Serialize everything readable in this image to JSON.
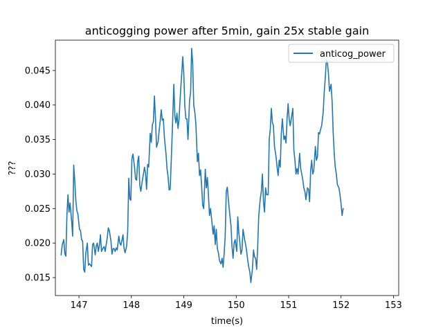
{
  "chart_data": {
    "type": "line",
    "title": "anticogging power after 5min, gain 25x stable gain",
    "xlabel": "time(s)",
    "ylabel": "???",
    "xlim": [
      146.55,
      153.1
    ],
    "ylim": [
      0.0124,
      0.0494
    ],
    "x_ticks": [
      147,
      148,
      149,
      150,
      151,
      152,
      153
    ],
    "y_ticks": [
      0.015,
      0.02,
      0.025,
      0.03,
      0.035,
      0.04,
      0.045
    ],
    "x_tick_labels": [
      "147",
      "148",
      "149",
      "150",
      "151",
      "152",
      "153"
    ],
    "y_tick_labels": [
      "0.015",
      "0.020",
      "0.025",
      "0.030",
      "0.035",
      "0.040",
      "0.045"
    ],
    "grid": false,
    "legend_position": "top-right",
    "colors": {
      "series": "#1f77b4"
    },
    "series": [
      {
        "name": "anticog_power",
        "points": [
          [
            146.66,
            0.0183
          ],
          [
            146.68,
            0.0197
          ],
          [
            146.71,
            0.0205
          ],
          [
            146.73,
            0.0185
          ],
          [
            146.75,
            0.0181
          ],
          [
            146.77,
            0.024
          ],
          [
            146.79,
            0.027
          ],
          [
            146.81,
            0.0245
          ],
          [
            146.83,
            0.0258
          ],
          [
            146.86,
            0.0232
          ],
          [
            146.88,
            0.021
          ],
          [
            146.9,
            0.0313
          ],
          [
            146.92,
            0.029
          ],
          [
            146.94,
            0.0262
          ],
          [
            146.96,
            0.0247
          ],
          [
            146.98,
            0.0242
          ],
          [
            147.01,
            0.022
          ],
          [
            147.03,
            0.0218
          ],
          [
            147.05,
            0.0205
          ],
          [
            147.07,
            0.0203
          ],
          [
            147.09,
            0.0162
          ],
          [
            147.11,
            0.0158
          ],
          [
            147.13,
            0.0185
          ],
          [
            147.16,
            0.02
          ],
          [
            147.18,
            0.0168
          ],
          [
            147.2,
            0.017
          ],
          [
            147.22,
            0.0168
          ],
          [
            147.24,
            0.0166
          ],
          [
            147.26,
            0.0198
          ],
          [
            147.28,
            0.02
          ],
          [
            147.31,
            0.0183
          ],
          [
            147.33,
            0.0196
          ],
          [
            147.35,
            0.02
          ],
          [
            147.37,
            0.0188
          ],
          [
            147.39,
            0.0197
          ],
          [
            147.41,
            0.0212
          ],
          [
            147.43,
            0.0188
          ],
          [
            147.46,
            0.0193
          ],
          [
            147.48,
            0.0195
          ],
          [
            147.5,
            0.0188
          ],
          [
            147.52,
            0.0198
          ],
          [
            147.54,
            0.0208
          ],
          [
            147.56,
            0.0222
          ],
          [
            147.58,
            0.0218
          ],
          [
            147.61,
            0.0203
          ],
          [
            147.63,
            0.0184
          ],
          [
            147.65,
            0.0192
          ],
          [
            147.67,
            0.0192
          ],
          [
            147.69,
            0.0188
          ],
          [
            147.71,
            0.0193
          ],
          [
            147.73,
            0.019
          ],
          [
            147.76,
            0.021
          ],
          [
            147.78,
            0.02
          ],
          [
            147.8,
            0.0197
          ],
          [
            147.82,
            0.0204
          ],
          [
            147.84,
            0.0212
          ],
          [
            147.86,
            0.0192
          ],
          [
            147.88,
            0.0186
          ],
          [
            147.91,
            0.0196
          ],
          [
            147.93,
            0.0217
          ],
          [
            147.95,
            0.0294
          ],
          [
            147.97,
            0.0264
          ],
          [
            147.99,
            0.0262
          ],
          [
            148.01,
            0.0322
          ],
          [
            148.03,
            0.0329
          ],
          [
            148.06,
            0.031
          ],
          [
            148.08,
            0.0293
          ],
          [
            148.1,
            0.0291
          ],
          [
            148.12,
            0.0318
          ],
          [
            148.14,
            0.0326
          ],
          [
            148.16,
            0.0284
          ],
          [
            148.18,
            0.0275
          ],
          [
            148.21,
            0.0291
          ],
          [
            148.23,
            0.03
          ],
          [
            148.25,
            0.031
          ],
          [
            148.27,
            0.0301
          ],
          [
            148.29,
            0.0278
          ],
          [
            148.31,
            0.0314
          ],
          [
            148.33,
            0.031
          ],
          [
            148.36,
            0.0359
          ],
          [
            148.38,
            0.0346
          ],
          [
            148.4,
            0.0371
          ],
          [
            148.42,
            0.0376
          ],
          [
            148.44,
            0.0413
          ],
          [
            148.46,
            0.038
          ],
          [
            148.48,
            0.0339
          ],
          [
            148.51,
            0.0347
          ],
          [
            148.53,
            0.0363
          ],
          [
            148.55,
            0.0377
          ],
          [
            148.57,
            0.0393
          ],
          [
            148.59,
            0.0378
          ],
          [
            148.61,
            0.038
          ],
          [
            148.63,
            0.0353
          ],
          [
            148.66,
            0.033
          ],
          [
            148.68,
            0.0308
          ],
          [
            148.7,
            0.0296
          ],
          [
            148.72,
            0.0277
          ],
          [
            148.74,
            0.0278
          ],
          [
            148.76,
            0.0318
          ],
          [
            148.78,
            0.0361
          ],
          [
            148.81,
            0.043
          ],
          [
            148.83,
            0.0384
          ],
          [
            148.85,
            0.0374
          ],
          [
            148.87,
            0.0388
          ],
          [
            148.89,
            0.0366
          ],
          [
            148.91,
            0.038
          ],
          [
            148.93,
            0.0409
          ],
          [
            148.96,
            0.0445
          ],
          [
            148.98,
            0.047
          ],
          [
            149.0,
            0.0445
          ],
          [
            149.02,
            0.0398
          ],
          [
            149.04,
            0.038
          ],
          [
            149.06,
            0.038
          ],
          [
            149.08,
            0.035
          ],
          [
            149.11,
            0.0407
          ],
          [
            149.13,
            0.0418
          ],
          [
            149.15,
            0.0482
          ],
          [
            149.17,
            0.046
          ],
          [
            149.19,
            0.04
          ],
          [
            149.21,
            0.039
          ],
          [
            149.23,
            0.0373
          ],
          [
            149.26,
            0.0318
          ],
          [
            149.28,
            0.033
          ],
          [
            149.3,
            0.0298
          ],
          [
            149.32,
            0.0306
          ],
          [
            149.34,
            0.0283
          ],
          [
            149.36,
            0.0255
          ],
          [
            149.38,
            0.025
          ],
          [
            149.41,
            0.0307
          ],
          [
            149.43,
            0.028
          ],
          [
            149.45,
            0.0295
          ],
          [
            149.47,
            0.027
          ],
          [
            149.49,
            0.024
          ],
          [
            149.51,
            0.025
          ],
          [
            149.53,
            0.0235
          ],
          [
            149.56,
            0.0213
          ],
          [
            149.58,
            0.0225
          ],
          [
            149.6,
            0.0198
          ],
          [
            149.62,
            0.022
          ],
          [
            149.64,
            0.0192
          ],
          [
            149.66,
            0.0186
          ],
          [
            149.68,
            0.0175
          ],
          [
            149.71,
            0.017
          ],
          [
            149.73,
            0.0178
          ],
          [
            149.75,
            0.0165
          ],
          [
            149.77,
            0.0185
          ],
          [
            149.79,
            0.021
          ],
          [
            149.81,
            0.0275
          ],
          [
            149.83,
            0.0281
          ],
          [
            149.86,
            0.0255
          ],
          [
            149.88,
            0.024
          ],
          [
            149.9,
            0.0225
          ],
          [
            149.92,
            0.0195
          ],
          [
            149.94,
            0.0178
          ],
          [
            149.96,
            0.02
          ],
          [
            149.98,
            0.0205
          ],
          [
            150.01,
            0.0188
          ],
          [
            150.03,
            0.0238
          ],
          [
            150.05,
            0.0215
          ],
          [
            150.07,
            0.02
          ],
          [
            150.09,
            0.0184
          ],
          [
            150.11,
            0.019
          ],
          [
            150.13,
            0.022
          ],
          [
            150.16,
            0.0205
          ],
          [
            150.18,
            0.0198
          ],
          [
            150.2,
            0.0188
          ],
          [
            150.22,
            0.0175
          ],
          [
            150.24,
            0.0165
          ],
          [
            150.26,
            0.0158
          ],
          [
            150.28,
            0.0143
          ],
          [
            150.31,
            0.0163
          ],
          [
            150.33,
            0.019
          ],
          [
            150.35,
            0.018
          ],
          [
            150.37,
            0.0178
          ],
          [
            150.39,
            0.0162
          ],
          [
            150.41,
            0.0195
          ],
          [
            150.43,
            0.024
          ],
          [
            150.46,
            0.0265
          ],
          [
            150.48,
            0.0275
          ],
          [
            150.5,
            0.03
          ],
          [
            150.52,
            0.026
          ],
          [
            150.54,
            0.0245
          ],
          [
            150.56,
            0.028
          ],
          [
            150.58,
            0.027
          ],
          [
            150.61,
            0.027
          ],
          [
            150.63,
            0.035
          ],
          [
            150.65,
            0.0365
          ],
          [
            150.67,
            0.0395
          ],
          [
            150.69,
            0.0375
          ],
          [
            150.71,
            0.037
          ],
          [
            150.73,
            0.034
          ],
          [
            150.76,
            0.0325
          ],
          [
            150.78,
            0.031
          ],
          [
            150.8,
            0.0298
          ],
          [
            150.82,
            0.032
          ],
          [
            150.84,
            0.031
          ],
          [
            150.86,
            0.0358
          ],
          [
            150.88,
            0.038
          ],
          [
            150.91,
            0.035
          ],
          [
            150.93,
            0.0355
          ],
          [
            150.95,
            0.0345
          ],
          [
            150.97,
            0.038
          ],
          [
            150.99,
            0.0402
          ],
          [
            151.01,
            0.038
          ],
          [
            151.03,
            0.037
          ],
          [
            151.06,
            0.0385
          ],
          [
            151.08,
            0.0395
          ],
          [
            151.1,
            0.0335
          ],
          [
            151.12,
            0.032
          ],
          [
            151.14,
            0.03
          ],
          [
            151.16,
            0.0308
          ],
          [
            151.18,
            0.03
          ],
          [
            151.21,
            0.033
          ],
          [
            151.23,
            0.0308
          ],
          [
            151.25,
            0.03
          ],
          [
            151.27,
            0.0292
          ],
          [
            151.29,
            0.028
          ],
          [
            151.31,
            0.0275
          ],
          [
            151.33,
            0.0263
          ],
          [
            151.36,
            0.028
          ],
          [
            151.38,
            0.0278
          ],
          [
            151.4,
            0.026
          ],
          [
            151.42,
            0.0305
          ],
          [
            151.44,
            0.032
          ],
          [
            151.46,
            0.03
          ],
          [
            151.48,
            0.0305
          ],
          [
            151.51,
            0.034
          ],
          [
            151.53,
            0.032
          ],
          [
            151.55,
            0.0325
          ],
          [
            151.57,
            0.036
          ],
          [
            151.59,
            0.0358
          ],
          [
            151.61,
            0.0365
          ],
          [
            151.63,
            0.037
          ],
          [
            151.66,
            0.039
          ],
          [
            151.68,
            0.042
          ],
          [
            151.7,
            0.044
          ],
          [
            151.72,
            0.0465
          ],
          [
            151.74,
            0.0462
          ],
          [
            151.76,
            0.0445
          ],
          [
            151.78,
            0.042
          ],
          [
            151.81,
            0.043
          ],
          [
            151.83,
            0.0405
          ],
          [
            151.85,
            0.036
          ],
          [
            151.87,
            0.033
          ],
          [
            151.89,
            0.031
          ],
          [
            151.91,
            0.03
          ],
          [
            151.93,
            0.0285
          ],
          [
            151.96,
            0.028
          ],
          [
            151.98,
            0.027
          ],
          [
            152.0,
            0.0257
          ],
          [
            152.02,
            0.024
          ],
          [
            152.04,
            0.025
          ]
        ]
      }
    ]
  }
}
